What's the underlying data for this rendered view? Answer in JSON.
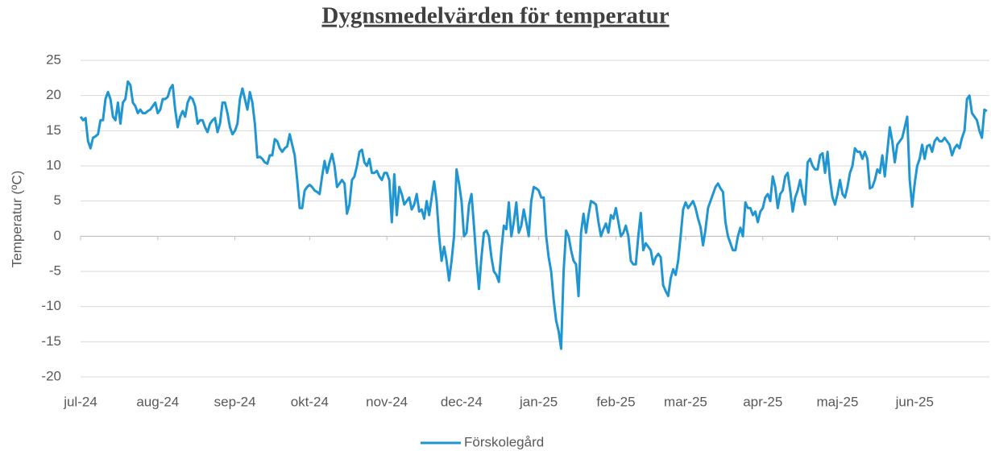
{
  "chart_data": {
    "type": "line",
    "title": "Dygnsmedelvärden för temperatur",
    "y_label": "Temperatur (ºC)",
    "months": [
      {
        "label": "jul-24",
        "values": [
          17,
          16.5,
          16.8,
          13.5,
          12.5,
          14,
          14.2,
          14.5,
          16.5,
          16.5,
          19.5,
          20.5,
          19.5,
          17,
          16.5,
          19,
          16,
          19,
          19.5,
          22,
          21.5,
          19,
          18.5,
          17.5,
          18,
          17.5,
          17.5,
          17.8,
          18,
          18.5,
          19
        ]
      },
      {
        "label": "aug-24",
        "values": [
          17.5,
          18,
          19.5,
          19.5,
          19.8,
          21,
          21.5,
          18,
          15.5,
          17,
          17.8,
          17,
          19,
          19.8,
          19.5,
          18.5,
          16,
          16.5,
          16.5,
          15.5,
          14.8,
          16,
          16.5,
          16.8,
          14.8,
          16,
          19,
          19,
          17.5,
          15.5,
          14.5
        ]
      },
      {
        "label": "sep-24",
        "values": [
          15,
          16,
          19.5,
          21,
          19.5,
          18,
          20.5,
          19,
          16,
          11.2,
          11.3,
          11,
          10.5,
          10.3,
          11.5,
          11.5,
          13.8,
          13.5,
          12.5,
          12,
          12.5,
          12.8,
          14.5,
          13,
          11.5,
          8,
          4,
          4,
          6.5,
          7
        ]
      },
      {
        "label": "okt-24",
        "values": [
          7.3,
          7,
          6.5,
          6.3,
          6,
          8.5,
          10.7,
          9,
          10.5,
          11.7,
          10,
          7,
          7.5,
          8,
          7.5,
          3.2,
          4.5,
          8,
          8.5,
          10,
          12,
          12.3,
          10.5,
          10,
          11,
          9,
          9,
          9.3,
          8.5,
          8,
          9
        ]
      },
      {
        "label": "nov-24",
        "values": [
          9,
          8,
          2,
          8.8,
          3,
          7,
          6,
          4.5,
          5,
          5.5,
          3.8,
          4.5,
          6,
          3.5,
          3.8,
          2.5,
          5,
          3,
          5.5,
          7.8,
          5,
          0,
          -3.5,
          -1.5,
          -3.5,
          -6.3,
          -3.5,
          0,
          9.5,
          7.5
        ]
      },
      {
        "label": "dec-24",
        "values": [
          5,
          0,
          0.5,
          4.5,
          6,
          1.5,
          -3.5,
          -7.5,
          -3,
          0.5,
          0.8,
          0,
          -3,
          -5,
          -5.5,
          -6.5,
          -2,
          1.5,
          1,
          4.8,
          0,
          2,
          4.8,
          0.5,
          1.5,
          3.8,
          2,
          0,
          5,
          7,
          6.8
        ]
      },
      {
        "label": "jan-25",
        "values": [
          6.5,
          5.5,
          5.5,
          0,
          -3,
          -5,
          -9,
          -12,
          -13.5,
          -16,
          -5,
          0.8,
          0,
          -2,
          -3.5,
          -4,
          -8.5,
          0.5,
          3.2,
          0.5,
          3,
          5,
          4.8,
          4.5,
          2,
          0,
          1,
          1.8,
          0.5,
          3,
          2.5
        ]
      },
      {
        "label": "feb-25",
        "values": [
          4,
          2,
          0,
          0.5,
          1.5,
          0,
          -3.5,
          -4,
          -4,
          0,
          3.3,
          -2,
          -1,
          -1.5,
          -2,
          -4,
          -3,
          -2.5,
          -3,
          -7,
          -7.8,
          -8.5,
          -6,
          -4.7,
          -5.5,
          -3.5,
          0,
          3.8
        ]
      },
      {
        "label": "mar-25",
        "values": [
          4.8,
          4,
          4.5,
          5,
          4,
          2.5,
          1.3,
          -1.3,
          1,
          4,
          5,
          6,
          7,
          7.5,
          6.8,
          6.3,
          2,
          0,
          -1,
          -2,
          -2,
          0,
          1.2,
          0,
          4.8,
          4,
          4,
          3,
          3.5,
          2,
          3.5
        ]
      },
      {
        "label": "apr-25",
        "values": [
          4,
          5.5,
          6,
          5,
          8.5,
          7,
          4,
          6,
          6.5,
          8.5,
          9,
          6.5,
          3.5,
          5.5,
          6.5,
          8,
          6,
          4.5,
          10.5,
          11,
          10,
          9.5,
          9.5,
          11.5,
          11.8,
          9,
          12,
          8,
          5.5,
          4.5
        ]
      },
      {
        "label": "maj-25",
        "values": [
          6,
          8,
          6,
          5.5,
          7,
          9,
          10,
          12.5,
          12,
          12,
          11,
          12,
          11,
          6.8,
          7,
          8,
          9.5,
          9,
          11.5,
          8.5,
          12,
          15.5,
          13.5,
          10.5,
          13,
          13.5,
          14,
          15.5,
          17,
          8,
          4.2
        ]
      },
      {
        "label": "jun-25",
        "values": [
          7.5,
          10,
          11,
          13,
          11,
          12.8,
          13,
          12,
          13.5,
          14,
          13.5,
          13.5,
          14,
          13.5,
          13,
          11.5,
          12.5,
          13,
          12.5,
          14,
          15,
          19.5,
          20,
          17.5,
          17,
          16.5,
          15,
          14,
          18,
          17.8
        ]
      }
    ],
    "series_name": "Förskolegård",
    "color": "#1f96d2",
    "ylim": [
      -20,
      25
    ],
    "yticks": [
      -20,
      -15,
      -10,
      -5,
      0,
      5,
      10,
      15,
      20,
      25
    ],
    "grid": true,
    "legend": "bottom"
  }
}
